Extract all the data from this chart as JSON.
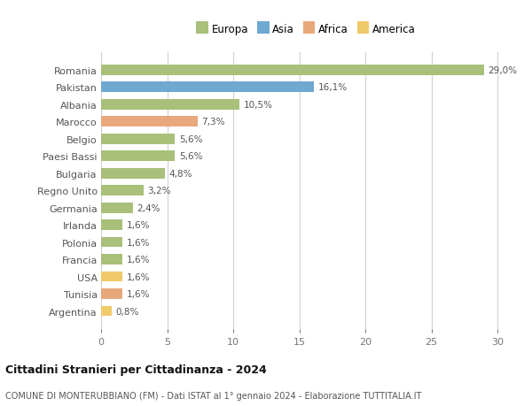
{
  "countries": [
    "Romania",
    "Pakistan",
    "Albania",
    "Marocco",
    "Belgio",
    "Paesi Bassi",
    "Bulgaria",
    "Regno Unito",
    "Germania",
    "Irlanda",
    "Polonia",
    "Francia",
    "USA",
    "Tunisia",
    "Argentina"
  ],
  "values": [
    29.0,
    16.1,
    10.5,
    7.3,
    5.6,
    5.6,
    4.8,
    3.2,
    2.4,
    1.6,
    1.6,
    1.6,
    1.6,
    1.6,
    0.8
  ],
  "labels": [
    "29,0%",
    "16,1%",
    "10,5%",
    "7,3%",
    "5,6%",
    "5,6%",
    "4,8%",
    "3,2%",
    "2,4%",
    "1,6%",
    "1,6%",
    "1,6%",
    "1,6%",
    "1,6%",
    "0,8%"
  ],
  "colors": [
    "#a8c07a",
    "#6fa8d0",
    "#a8c07a",
    "#e8a87c",
    "#a8c07a",
    "#a8c07a",
    "#a8c07a",
    "#a8c07a",
    "#a8c07a",
    "#a8c07a",
    "#a8c07a",
    "#a8c07a",
    "#f0c96a",
    "#e8a87c",
    "#f0c96a"
  ],
  "legend_labels": [
    "Europa",
    "Asia",
    "Africa",
    "America"
  ],
  "legend_colors": [
    "#a8c07a",
    "#6fa8d0",
    "#e8a87c",
    "#f0c96a"
  ],
  "title": "Cittadini Stranieri per Cittadinanza - 2024",
  "subtitle": "COMUNE DI MONTERUBBIANO (FM) - Dati ISTAT al 1° gennaio 2024 - Elaborazione TUTTITALIA.IT",
  "xlim": [
    0,
    31
  ],
  "xticks": [
    0,
    5,
    10,
    15,
    20,
    25,
    30
  ],
  "background_color": "#ffffff",
  "grid_color": "#d0d0d0",
  "bar_height": 0.6
}
